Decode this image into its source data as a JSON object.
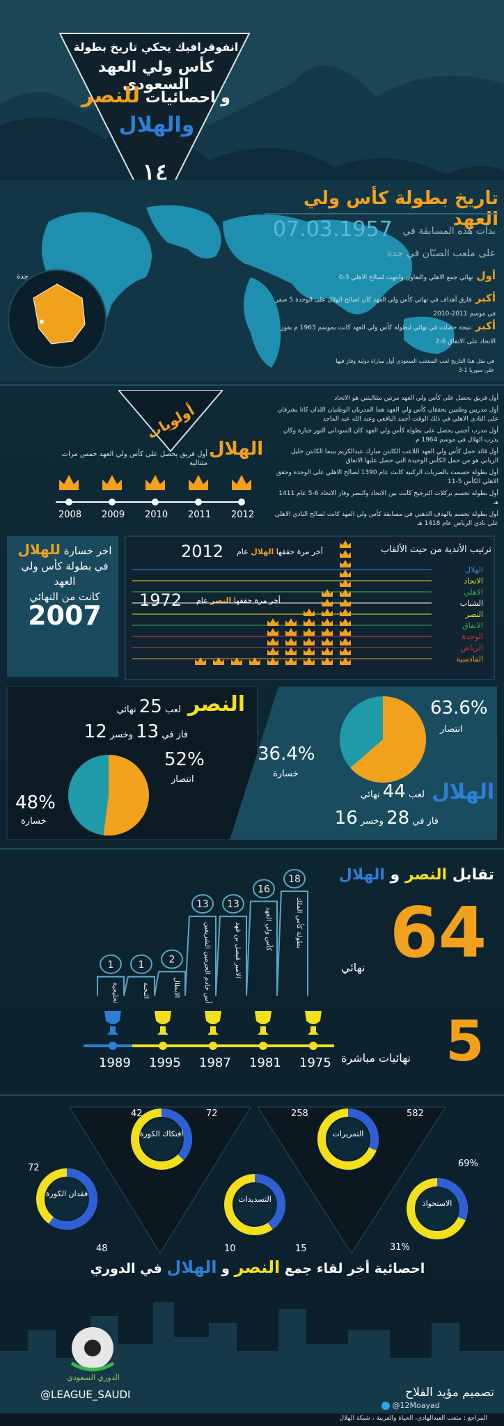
{
  "header": {
    "line1": "انفوقرافيك يحكي تاريخ بطولة",
    "line2": "كأس ولي العهد السعودي",
    "line3a": "و احصائيات",
    "line3b": "للنصر",
    "line4": "والهلال",
    "logo_text": "١٤"
  },
  "history": {
    "title": "تاريخ بطولة كأس ولي العهد",
    "start_label": "بدأت هذه المسابقة في",
    "start_date": "07.03.1957",
    "venue": "على ملعب الصبّان في جدة",
    "map_city": "جدة",
    "facts": [
      {
        "key": "أول",
        "text": "نهائي جمع الاهلي والتعاون وانتهت لصالح الاهلي 3-0"
      },
      {
        "key": "أكبر",
        "text": "فارق أهداف في نهائي كأس ولي العهد كان لصالح الهلال على الوحدة 5 صفر في موسم 2011-2010"
      },
      {
        "key": "أكبر",
        "text": "نتيجة حصلت في نهائي لبطولة كأس ولي العهد كانت بموسم 1963 م بفوز الاتحاد على الاتفاق 6-2"
      }
    ],
    "footnote": "في مثل هذا التاريخ لعب المنتخب السعودي أول مباراة دولية وفاز فيها على سوريا 1-3"
  },
  "firsts": {
    "title": "أولويات",
    "hilal_label": "الهلال",
    "hilal_text": "أول فريق يحصل على كأس ولي العهد خمس مرات متتالية",
    "years": [
      "2008",
      "2009",
      "2010",
      "2011",
      "2012"
    ],
    "notes": [
      "أول فريق يحصل على كأس ولي العهد مرتين متتاليتين هو الاتحاد",
      "أول مدربين وطنيين يحققان كأس ولي العهد هما المدربان الوطنيان اللذان كانا يشرفان على النادي الاهلي في ذلك الوقت أحمد اليافعي وعبد الله عبد الماجد",
      "أول مدرب أجنبي يحصل على بطولة كأس ولي العهد كان السوداني النور جبارة وكان يدرب الهلال في موسم 1964 م",
      "أول قائد حمل كأس ولي العهد اللاعب الكابتن مبارك عبدالكريم بينما الكابتن خليل الزياني هو من حمل الكأس الوحيدة التي حصل عليها الاتفاق",
      "أول بطولة حسمت بالضربات الركنية كانت عام 1390 لصالح الاهلي على الوحدة وحقق الاهلي الكأس 5-11",
      "أول بطولة تحسم بركلات الترجيح كانت بين الاتحاد والنصر وفاز الاتحاد 6-5 عام 1411 هـ",
      "أول بطولة تحسم بالهدف الذهبي في مسابقة كأس ولي العهد كانت لصالح النادي الاهلي على نادي الرياض عام 1418 هـ"
    ]
  },
  "ranking": {
    "last_loss_1": "اخر خسارة",
    "last_loss_team": "للهلال",
    "last_loss_2": "في بطولة كأس ولي العهد",
    "last_loss_3": "كانت من النهائي",
    "last_loss_year": "2007",
    "title": "ترتيب الأندية من حيث الألقاب",
    "hilal_last_pre": "أخر مرة حققها",
    "hilal_last_team": "الهلال",
    "hilal_last_post": "عام",
    "hilal_last_year": "2012",
    "nassr_last_pre": "أخر مرة حققها",
    "nassr_last_team": "النصر",
    "nassr_last_post": "عام",
    "nassr_last_year": "1972",
    "clubs": [
      {
        "name": "الهلال",
        "color": "#2d8fe0",
        "titles": 13
      },
      {
        "name": "الاتحاد",
        "color": "#f3e01d",
        "titles": 8
      },
      {
        "name": "الاهلي",
        "color": "#39b54a",
        "titles": 6
      },
      {
        "name": "الشباب",
        "color": "#ffffff",
        "titles": 5
      },
      {
        "name": "النصر",
        "color": "#f3e01d",
        "titles": 5
      },
      {
        "name": "الاتفاق",
        "color": "#39b54a",
        "titles": 1
      },
      {
        "name": "الوحدة",
        "color": "#e03a3a",
        "titles": 1
      },
      {
        "name": "الرياض",
        "color": "#e03a3a",
        "titles": 1
      },
      {
        "name": "القادسية",
        "color": "#f2a11d",
        "titles": 1
      }
    ]
  },
  "stats": {
    "nassr": {
      "name": "النصر",
      "played_label": "لعب",
      "played": "25",
      "finals_label": "نهائي",
      "won_label": "فاز في",
      "won": "13",
      "lost_label": "وخسر",
      "lost": "12",
      "win_pct": "52%",
      "win_label": "انتصار",
      "loss_pct": "48%",
      "loss_label": "خسارة",
      "win_value": 52,
      "loss_value": 48
    },
    "hilal": {
      "name": "الهلال",
      "played_label": "لعب",
      "played": "44",
      "finals_label": "نهائي",
      "won_label": "فاز في",
      "won": "28",
      "lost_label": "وخسر",
      "lost": "16",
      "win_pct": "63.6%",
      "win_label": "انتصار",
      "loss_pct": "36.4%",
      "loss_label": "خسارة",
      "win_value": 63.6,
      "loss_value": 36.4
    }
  },
  "h2h": {
    "title_pre": "تقابل",
    "title_a": "النصر",
    "title_mid": "و",
    "title_b": "الهلال",
    "total": "64",
    "total_label": "نهائي",
    "direct": "5",
    "direct_label": "نهائيات مباشرة",
    "bars": [
      {
        "value": "18",
        "label": "بطولة كأس الملك",
        "level": 18
      },
      {
        "value": "16",
        "label": "كأس ولي العهد",
        "level": 16
      },
      {
        "value": "13",
        "label": "الامير فيصل بن فهد",
        "level": 13
      },
      {
        "value": "13",
        "label": "كأس خادم الحرمين الشريفين",
        "level": 13
      },
      {
        "value": "2",
        "label": "الابطال",
        "level": 2
      },
      {
        "value": "1",
        "label": "النخبة",
        "level": 1
      },
      {
        "value": "1",
        "label": "الدورة الخليجية",
        "level": 1
      }
    ],
    "cup_years": [
      "1975",
      "1981",
      "1987",
      "1995",
      "1989"
    ]
  },
  "last_match": {
    "title_pre": "احصائية أخر لقاء جمع",
    "team_a": "النصر",
    "mid": "و",
    "team_b": "الهلال",
    "title_post": "في الدوري",
    "rings": [
      {
        "label": "افتكاك الكورة",
        "left": "42",
        "right": "72",
        "blue_share": 0.37
      },
      {
        "label": "التمريرات",
        "left": "258",
        "right": "582",
        "blue_share": 0.31
      },
      {
        "label": "فقدان الكورة",
        "left": "72",
        "right": "48",
        "blue_share": 0.6
      },
      {
        "label": "التسديدات",
        "left": "10",
        "right": "15",
        "blue_share": 0.4
      },
      {
        "label": "الاستحواذ",
        "left": "31%",
        "right": "69%",
        "blue_share": 0.31
      }
    ]
  },
  "footer": {
    "league_logo_text": "الدوري السعودي",
    "handle": "@LEAGUE_SAUDI",
    "designer_label": "تصميم مؤيد الفلاح",
    "designer_handle": "@12Moayad",
    "sources": "المراجع : متعب العبدالهادي، الحياة والعربية ، شبكة الهلال"
  },
  "colors": {
    "hilal": "#2d7fd6",
    "nassr": "#f3e01d",
    "orange": "#f2a11d",
    "teal": "#1f9aa8"
  }
}
